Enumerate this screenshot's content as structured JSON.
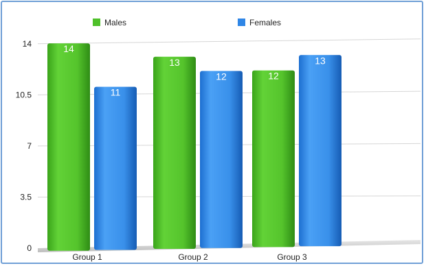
{
  "chart_data": {
    "type": "bar",
    "title": "",
    "xlabel": "",
    "ylabel": "",
    "categories": [
      "Group 1",
      "Group 2",
      "Group 3"
    ],
    "series": [
      {
        "name": "Males",
        "values": [
          14,
          13,
          12
        ],
        "color": "#4fc02a"
      },
      {
        "name": "Females",
        "values": [
          11,
          12,
          13
        ],
        "color": "#2f86e6"
      }
    ],
    "ylim": [
      0,
      14
    ],
    "yticks": [
      0,
      3.5,
      7,
      10.5,
      14
    ],
    "ytick_labels": [
      "0",
      "3.5",
      "7",
      "10.5",
      "14"
    ],
    "grid": true,
    "legend_position": "top",
    "data_labels": true
  }
}
